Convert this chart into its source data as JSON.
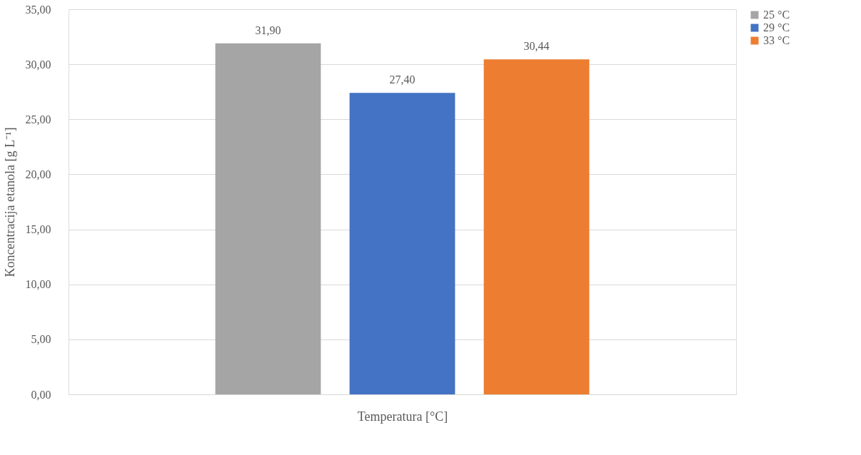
{
  "chart_data": {
    "type": "bar",
    "xlabel": "Temperatura [°C]",
    "ylabel": "Koncentracija etanola [g L⁻¹]",
    "categories": [
      null
    ],
    "series": [
      {
        "name": "25 °C",
        "color": "#a5a5a5",
        "values": [
          31.9
        ],
        "value_labels": [
          "31,90"
        ]
      },
      {
        "name": "29 °C",
        "color": "#4472c4",
        "values": [
          27.4
        ],
        "value_labels": [
          "27,40"
        ]
      },
      {
        "name": "33 °C",
        "color": "#ed7d31",
        "values": [
          30.44
        ],
        "value_labels": [
          "30,44"
        ]
      }
    ],
    "ylim": [
      0,
      35
    ],
    "yticks": [
      {
        "value": 0,
        "label": "0,00"
      },
      {
        "value": 5,
        "label": "5,00"
      },
      {
        "value": 10,
        "label": "10,00"
      },
      {
        "value": 15,
        "label": "15,00"
      },
      {
        "value": 20,
        "label": "20,00"
      },
      {
        "value": 25,
        "label": "25,00"
      },
      {
        "value": 30,
        "label": "30,00"
      },
      {
        "value": 35,
        "label": "35,00"
      }
    ],
    "grid": "y",
    "legend": "right"
  }
}
